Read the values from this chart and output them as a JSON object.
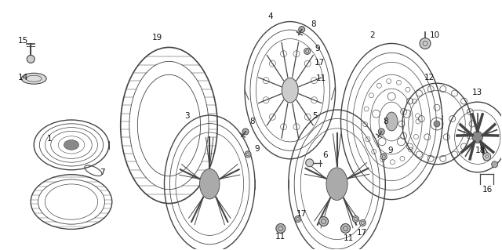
{
  "bg_color": "#ffffff",
  "fig_width": 6.4,
  "fig_height": 3.19,
  "dpi": 100,
  "line_color": "#444444",
  "label_color": "#111111",
  "label_fontsize": 7.5
}
